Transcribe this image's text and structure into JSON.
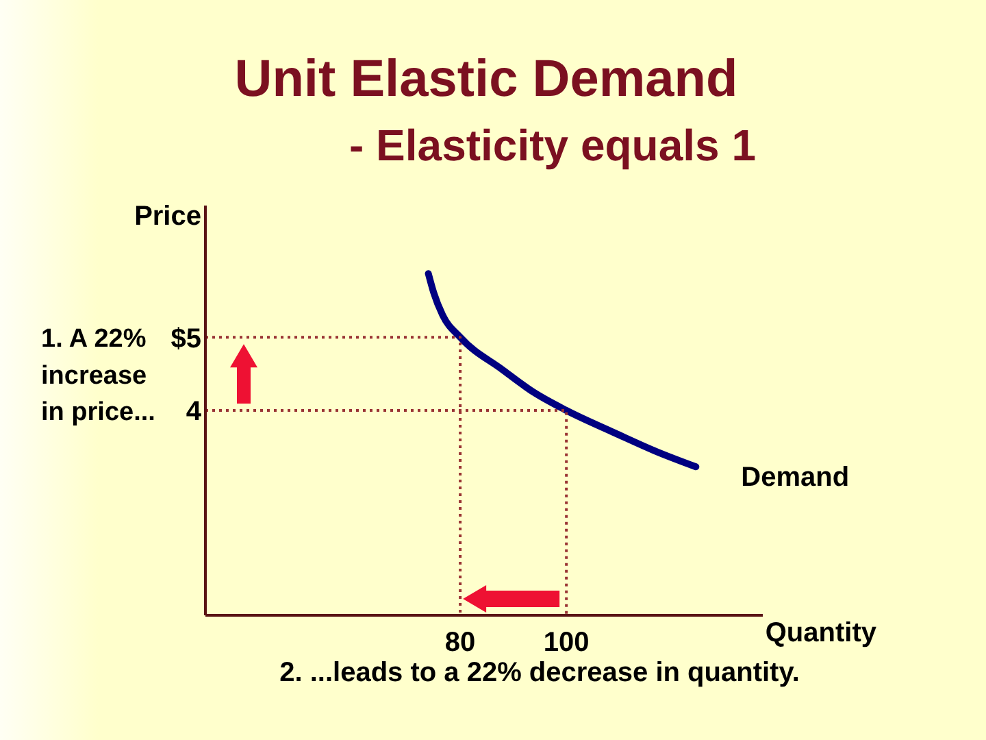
{
  "chart_data": {
    "type": "line",
    "title": "Unit Elastic Demand",
    "subtitle": "- Elasticity equals 1",
    "xlabel": "Quantity",
    "ylabel": "Price",
    "annotations": [
      "1. A 22% increase in price...",
      "2. ...leads to a 22% decrease in quantity."
    ],
    "xlim": [
      32,
      137
    ],
    "ylim": [
      1.2,
      6.8
    ],
    "xticks": [
      80,
      100
    ],
    "yticks": [
      {
        "value": 5,
        "label": "$5"
      },
      4
    ],
    "series": [
      {
        "name": "Demand",
        "color": "#000080",
        "x": [
          74,
          75,
          76.7,
          80,
          87.9,
          93.8,
          100,
          109.2,
          116.9,
          124.4
        ],
        "values": [
          5.87,
          5.61,
          5.3,
          5,
          4.56,
          4.25,
          4,
          3.69,
          3.44,
          3.23
        ]
      },
      {
        "color": "#993333",
        "line_style": "dotted",
        "x": [
          32,
          80,
          80
        ],
        "values": [
          5,
          5,
          1.2
        ]
      },
      {
        "color": "#993333",
        "line_style": "dotted",
        "x": [
          32,
          100,
          100
        ],
        "values": [
          4,
          4,
          1.2
        ]
      }
    ]
  }
}
